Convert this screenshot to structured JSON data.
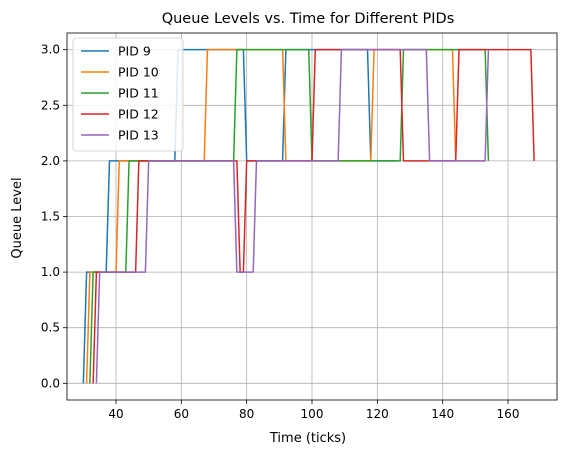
{
  "chart_data": {
    "type": "line",
    "title": "Queue Levels vs. Time for Different PIDs",
    "xlabel": "Time (ticks)",
    "ylabel": "Queue Level",
    "xlim": [
      25,
      175
    ],
    "ylim": [
      -0.15,
      3.15
    ],
    "x_ticks": [
      40,
      60,
      80,
      100,
      120,
      140,
      160
    ],
    "y_ticks": [
      0.0,
      0.5,
      1.0,
      1.5,
      2.0,
      2.5,
      3.0
    ],
    "x_tick_labels": [
      "40",
      "60",
      "80",
      "100",
      "120",
      "140",
      "160"
    ],
    "y_tick_labels": [
      "0.0",
      "0.5",
      "1.0",
      "1.5",
      "2.0",
      "2.5",
      "3.0"
    ],
    "grid": true,
    "legend_position": "upper-left",
    "series": [
      {
        "name": "PID 9",
        "color": "#1f77b4",
        "x": [
          30,
          31,
          37,
          38,
          58,
          59,
          79,
          80,
          91,
          92,
          117,
          118,
          126
        ],
        "y": [
          0,
          1,
          1,
          2,
          2,
          3,
          3,
          2,
          2,
          3,
          3,
          2,
          2
        ]
      },
      {
        "name": "PID 10",
        "color": "#ff7f0e",
        "x": [
          31,
          32,
          40,
          41,
          67,
          68,
          91,
          92,
          118,
          119,
          143,
          144,
          153
        ],
        "y": [
          0,
          1,
          1,
          2,
          2,
          3,
          3,
          2,
          2,
          3,
          3,
          2,
          2
        ]
      },
      {
        "name": "PID 11",
        "color": "#2ca02c",
        "x": [
          32,
          33,
          43,
          44,
          76,
          77,
          99,
          100,
          127,
          128,
          153,
          154
        ],
        "y": [
          0,
          1,
          1,
          2,
          2,
          3,
          3,
          2,
          2,
          3,
          3,
          2
        ]
      },
      {
        "name": "PID 12",
        "color": "#d62728",
        "x": [
          33,
          34,
          46,
          47,
          77,
          78,
          79,
          80,
          100,
          101,
          127,
          128,
          144,
          145,
          167,
          168
        ],
        "y": [
          0,
          1,
          1,
          2,
          2,
          1,
          1,
          2,
          2,
          3,
          3,
          2,
          2,
          3,
          3,
          2
        ]
      },
      {
        "name": "PID 13",
        "color": "#9467bd",
        "x": [
          34,
          35,
          49,
          50,
          76,
          77,
          82,
          83,
          108,
          109,
          135,
          136,
          153,
          154
        ],
        "y": [
          0,
          1,
          1,
          2,
          2,
          1,
          1,
          2,
          2,
          3,
          3,
          2,
          2,
          3
        ]
      }
    ]
  }
}
